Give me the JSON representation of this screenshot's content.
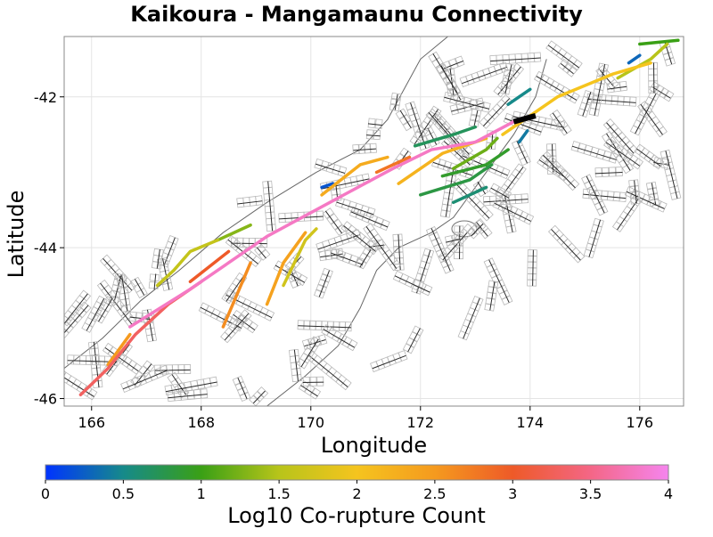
{
  "chart_data": {
    "type": "map",
    "title": "Kaikoura - Mangamaunu Connectivity",
    "xlabel": "Longitude",
    "ylabel": "Latitude",
    "xlim": [
      165.5,
      176.8
    ],
    "ylim": [
      -46.1,
      -41.2
    ],
    "x_ticks": [
      166,
      168,
      170,
      172,
      174,
      176
    ],
    "y_ticks": [
      -42,
      -44,
      -46
    ],
    "colorbar": {
      "label": "Log10 Co-rupture Count",
      "range": [
        0,
        4
      ],
      "ticks": [
        "0",
        "0.5",
        "1",
        "1.5",
        "2",
        "2.5",
        "3",
        "3.5",
        "4"
      ],
      "colors": [
        "#0033ff",
        "#168a8a",
        "#3aa015",
        "#b8c41a",
        "#f5c41e",
        "#f59a1e",
        "#ee5a28",
        "#f46686",
        "#f585ee"
      ]
    },
    "source_fault": {
      "name": "Kaikoura - Mangamaunu",
      "points": [
        [
          173.7,
          -42.33
        ],
        [
          174.1,
          -42.25
        ]
      ]
    },
    "ruptures": [
      {
        "value": 3.8,
        "points": [
          [
            166.7,
            -45.05
          ],
          [
            167.8,
            -44.55
          ],
          [
            169.2,
            -43.85
          ],
          [
            170.6,
            -43.3
          ],
          [
            171.5,
            -42.95
          ],
          [
            172.2,
            -42.7
          ],
          [
            173.0,
            -42.6
          ],
          [
            173.7,
            -42.33
          ]
        ]
      },
      {
        "value": 3.3,
        "points": [
          [
            165.8,
            -45.95
          ],
          [
            166.3,
            -45.6
          ],
          [
            166.8,
            -45.15
          ],
          [
            167.4,
            -44.75
          ],
          [
            168.0,
            -44.45
          ]
        ]
      },
      {
        "value": 3.0,
        "points": [
          [
            167.8,
            -44.45
          ],
          [
            168.5,
            -44.05
          ]
        ]
      },
      {
        "value": 2.8,
        "points": [
          [
            171.2,
            -43.0
          ],
          [
            171.8,
            -42.8
          ]
        ]
      },
      {
        "value": 2.6,
        "points": [
          [
            168.4,
            -45.05
          ],
          [
            168.9,
            -44.2
          ]
        ]
      },
      {
        "value": 2.5,
        "points": [
          [
            166.3,
            -45.55
          ],
          [
            166.7,
            -45.15
          ]
        ]
      },
      {
        "value": 2.4,
        "points": [
          [
            169.2,
            -44.75
          ],
          [
            169.5,
            -44.2
          ],
          [
            169.9,
            -43.8
          ]
        ]
      },
      {
        "value": 2.3,
        "points": [
          [
            170.2,
            -43.3
          ],
          [
            170.9,
            -42.9
          ],
          [
            171.4,
            -42.8
          ]
        ]
      },
      {
        "value": 2.2,
        "points": [
          [
            171.6,
            -43.15
          ],
          [
            172.4,
            -42.75
          ],
          [
            173.2,
            -42.55
          ]
        ]
      },
      {
        "value": 2.0,
        "points": [
          [
            173.5,
            -42.5
          ],
          [
            174.5,
            -42.0
          ],
          [
            175.5,
            -41.7
          ],
          [
            176.2,
            -41.55
          ]
        ]
      },
      {
        "value": 1.7,
        "points": [
          [
            169.5,
            -44.5
          ],
          [
            169.9,
            -43.9
          ],
          [
            170.1,
            -43.75
          ]
        ]
      },
      {
        "value": 1.6,
        "points": [
          [
            167.2,
            -44.5
          ],
          [
            167.5,
            -44.3
          ],
          [
            167.8,
            -44.05
          ],
          [
            168.3,
            -43.9
          ]
        ]
      },
      {
        "value": 1.5,
        "points": [
          [
            175.6,
            -41.75
          ],
          [
            176.2,
            -41.5
          ],
          [
            176.5,
            -41.3
          ]
        ]
      },
      {
        "value": 1.3,
        "points": [
          [
            168.3,
            -43.9
          ],
          [
            168.9,
            -43.7
          ]
        ]
      },
      {
        "value": 1.2,
        "points": [
          [
            172.6,
            -42.95
          ],
          [
            173.2,
            -42.7
          ],
          [
            173.4,
            -42.55
          ]
        ]
      },
      {
        "value": 1.0,
        "points": [
          [
            176.0,
            -41.3
          ],
          [
            176.7,
            -41.25
          ]
        ]
      },
      {
        "value": 0.9,
        "points": [
          [
            172.4,
            -43.05
          ],
          [
            173.2,
            -42.9
          ],
          [
            173.6,
            -42.7
          ]
        ]
      },
      {
        "value": 0.8,
        "points": [
          [
            172.0,
            -43.3
          ],
          [
            172.9,
            -43.1
          ],
          [
            173.3,
            -42.9
          ]
        ]
      },
      {
        "value": 0.6,
        "points": [
          [
            172.6,
            -43.4
          ],
          [
            173.2,
            -43.2
          ]
        ]
      },
      {
        "value": 0.7,
        "points": [
          [
            171.9,
            -42.65
          ],
          [
            172.6,
            -42.5
          ],
          [
            173.0,
            -42.4
          ]
        ]
      },
      {
        "value": 0.5,
        "points": [
          [
            173.6,
            -42.1
          ],
          [
            174.0,
            -41.9
          ]
        ]
      },
      {
        "value": 0.3,
        "points": [
          [
            175.8,
            -41.55
          ],
          [
            176.0,
            -41.45
          ]
        ]
      },
      {
        "value": 0.2,
        "points": [
          [
            170.2,
            -43.2
          ],
          [
            170.4,
            -43.15
          ]
        ]
      },
      {
        "value": 0.4,
        "points": [
          [
            173.8,
            -42.6
          ],
          [
            173.95,
            -42.45
          ]
        ]
      }
    ]
  }
}
